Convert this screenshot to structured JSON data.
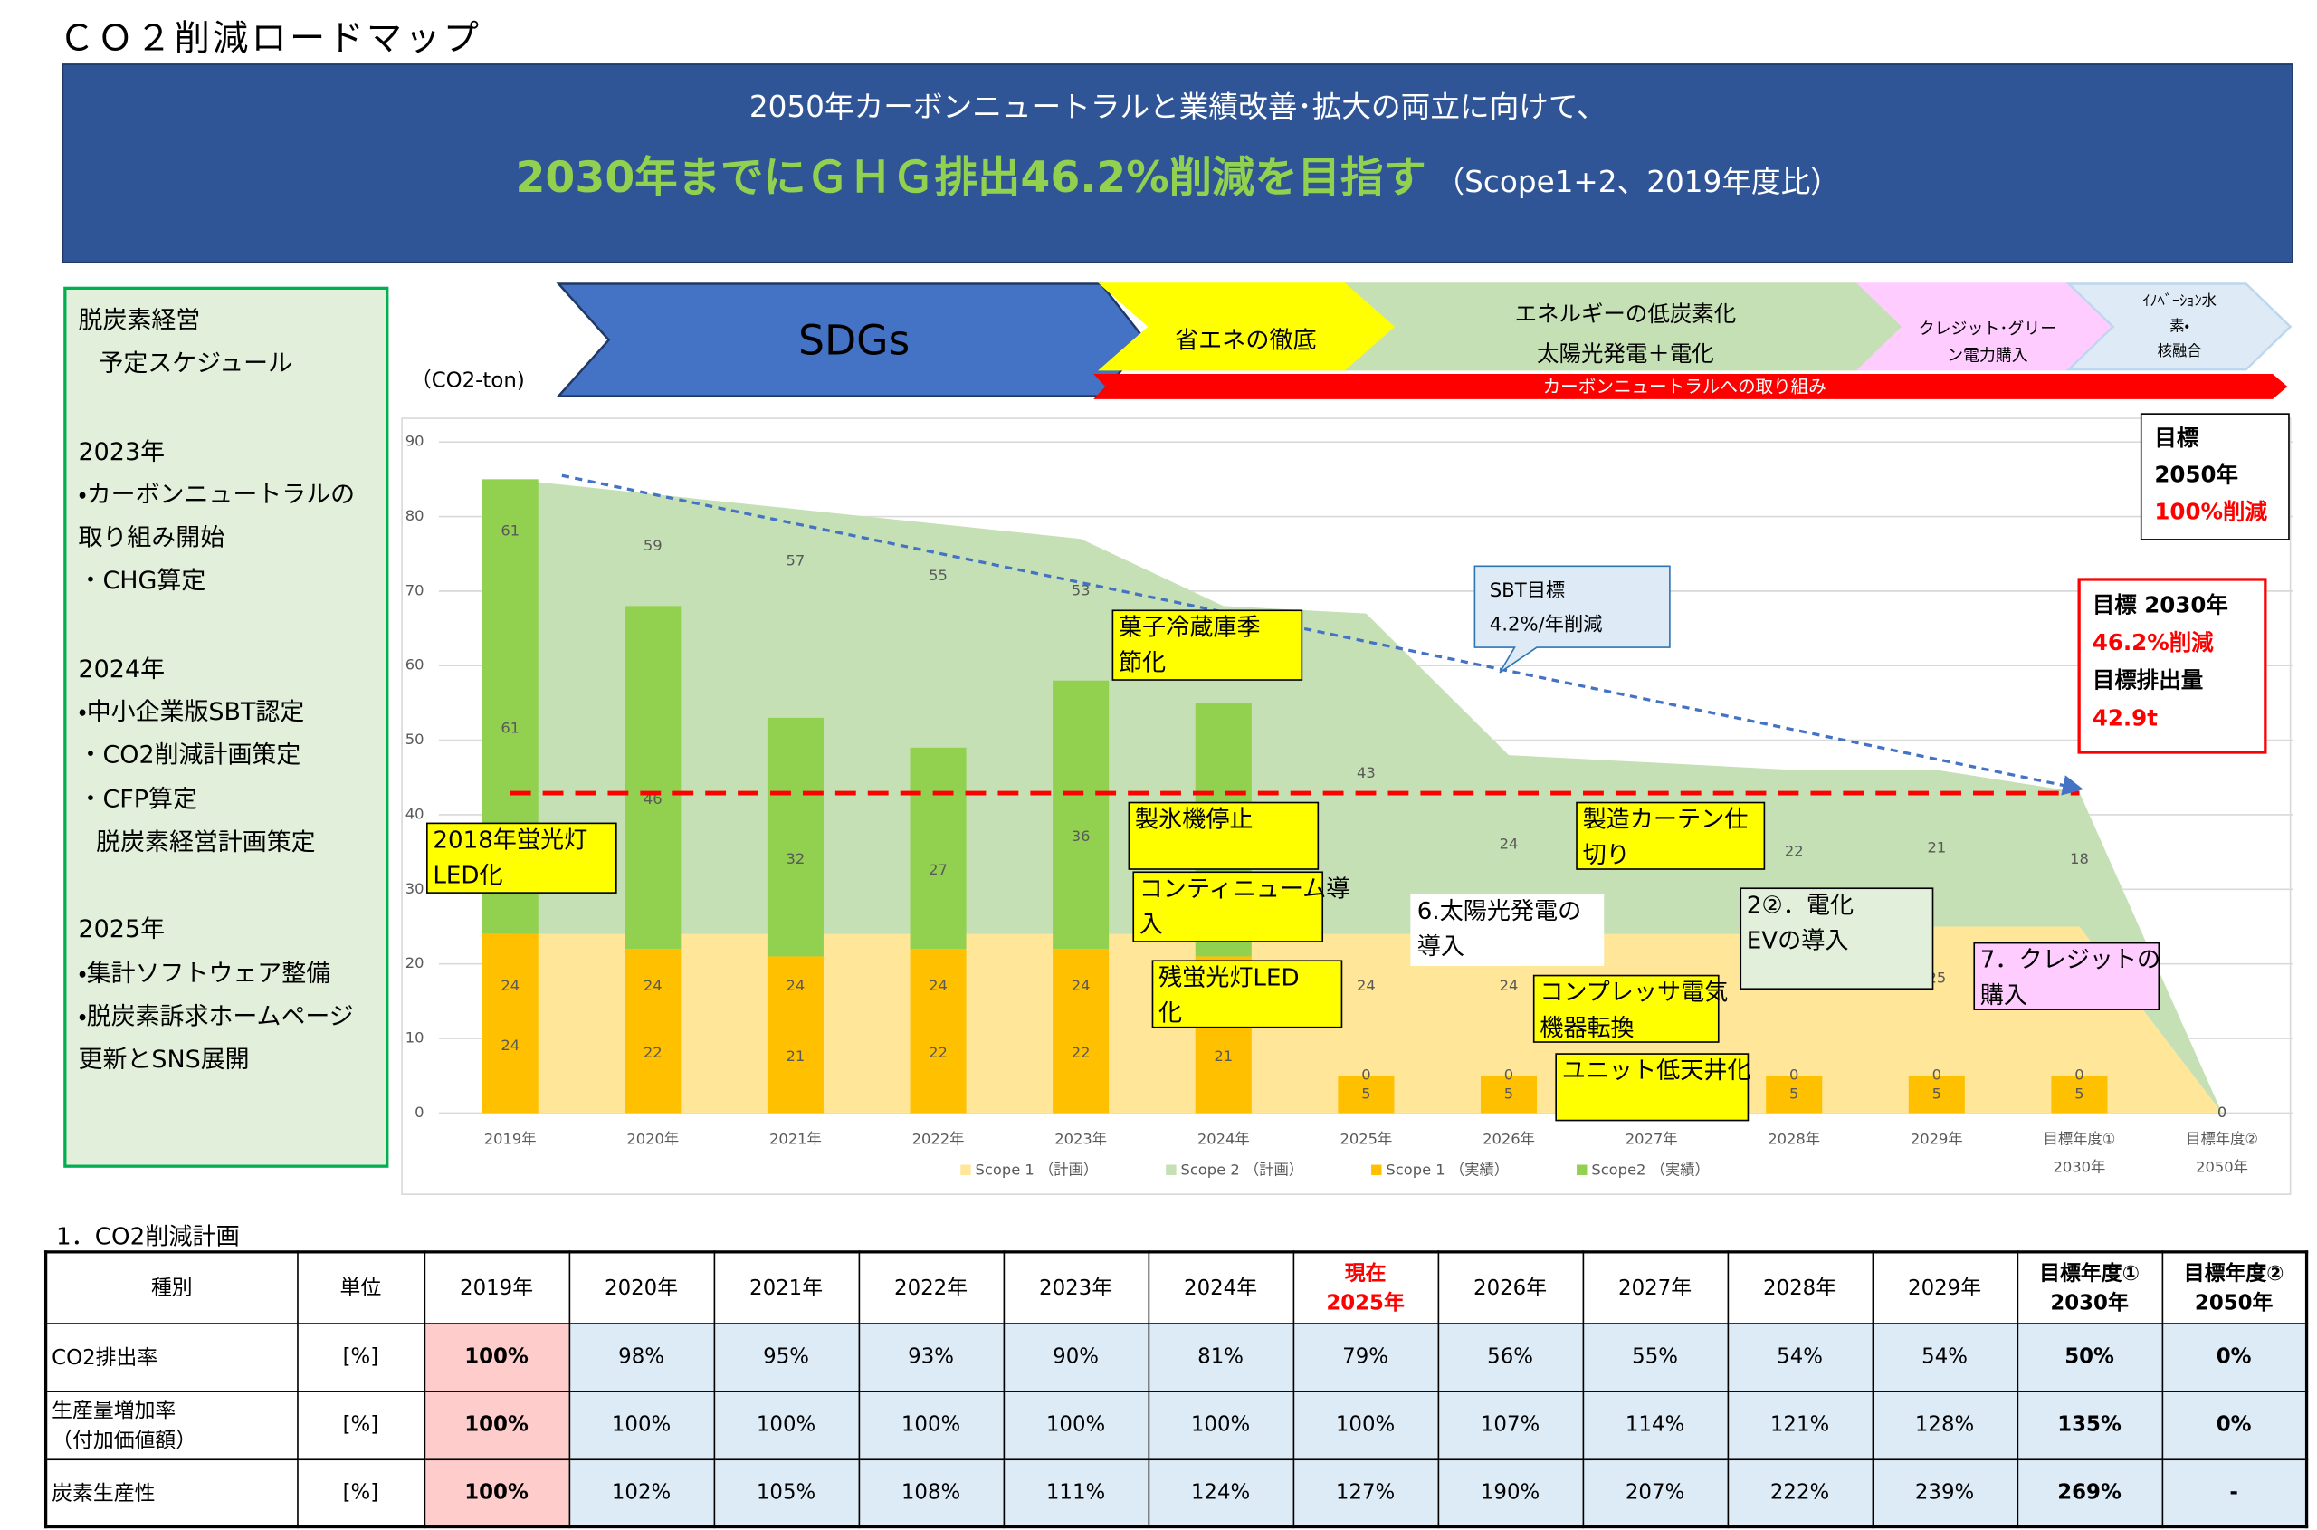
{
  "title": "ＣＯ２削減ロードマップ",
  "banner": {
    "line1": "2050年カーボンニュートラルと業績改善･拡大の両立に向けて、",
    "headline": "2030年までにＧＨＧ排出46.2%削減を目指す",
    "headline_note": "（Scope1+2、2019年度比）"
  },
  "sidebar": {
    "title": [
      "脱炭素経営",
      "予定スケジュール"
    ],
    "sections": [
      {
        "year": "2023年",
        "items": [
          "・カーボンニュートラルの取り組み開始",
          "・CHG算定"
        ]
      },
      {
        "year": "2024年",
        "items": [
          "・中小企業版SBT認定",
          "・CO2削減計画策定",
          "・CFP算定",
          "脱炭素経営計画策定"
        ]
      },
      {
        "year": "2025年",
        "items": [
          "・集計ソフトウェア整備",
          "・脱炭素訴求ホームページ更新とSNS展開"
        ]
      }
    ]
  },
  "roadmap": {
    "phases": [
      {
        "lines": [
          "SDGs"
        ]
      },
      {
        "lines": [
          "省エネの徹底"
        ]
      },
      {
        "lines": [
          "エネルギーの低炭素化",
          "太陽光発電＋電化"
        ]
      },
      {
        "lines": [
          "クレジット･グリー",
          "ン電力購入"
        ]
      },
      {
        "lines": [
          "ｲﾉﾍﾞｰｼｮﾝ水",
          "素・",
          "核融合"
        ]
      }
    ],
    "arrow": "カーボンニュートラルへの取り組み"
  },
  "chart_data": {
    "type": "bar",
    "y_unit": "（CO2-ton)",
    "categories": [
      "2019年",
      "2020年",
      "2021年",
      "2022年",
      "2023年",
      "2024年",
      "2025年",
      "2026年",
      "2027年",
      "2028年",
      "2029年",
      "目標年度①",
      "目標年度②"
    ],
    "category_sublabels": [
      null,
      null,
      null,
      null,
      null,
      null,
      null,
      null,
      null,
      null,
      null,
      "2030年",
      "2050年"
    ],
    "series": [
      {
        "name": "Scope 1 （計画）",
        "kind": "area",
        "color": "#FFE699",
        "values": [
          24,
          24,
          24,
          24,
          24,
          24,
          24,
          24,
          24,
          24,
          25,
          25,
          0
        ]
      },
      {
        "name": "Scope 2 （計画）",
        "kind": "area",
        "color": "#C5E0B4",
        "values": [
          61,
          59,
          57,
          55,
          53,
          44,
          43,
          24,
          23,
          22,
          21,
          18,
          0
        ]
      },
      {
        "name": "Scope 1 （実績）",
        "kind": "bar",
        "color": "#FFC000",
        "values": [
          24,
          22,
          21,
          22,
          22,
          21,
          5,
          5,
          null,
          5,
          5,
          5,
          null
        ]
      },
      {
        "name": "Scope2 （実績）",
        "kind": "bar",
        "color": "#92D050",
        "values": [
          61,
          46,
          32,
          27,
          36,
          34,
          0,
          0,
          null,
          0,
          0,
          0,
          null
        ]
      }
    ],
    "ylim": [
      0,
      90
    ],
    "yticks": [
      0,
      10,
      20,
      30,
      40,
      50,
      60,
      70,
      80,
      90
    ],
    "grid": true,
    "target_line": 42.9,
    "sbt_line": [
      85.5,
      43.5
    ],
    "sbt_callout": [
      "SBT目標",
      "4.2%/年削減"
    ],
    "target_2050": [
      "目標",
      "2050年",
      "100%削減"
    ],
    "target_2030": [
      "目標 2030年",
      "46.2%削減",
      "目標排出量",
      "42.9t"
    ],
    "annotations": [
      {
        "lines": [
          "2018年蛍光灯",
          "LED化"
        ]
      },
      {
        "lines": [
          "菓子冷蔵庫季",
          "節化"
        ]
      },
      {
        "lines": [
          "製氷機停止"
        ]
      },
      {
        "lines": [
          "コンティニューム導",
          "入"
        ]
      },
      {
        "lines": [
          "残蛍光灯LED",
          "化"
        ]
      },
      {
        "lines": [
          "製造カーテン仕",
          "切り"
        ]
      },
      {
        "lines": [
          "コンプレッサ電気",
          "機器転換"
        ]
      },
      {
        "lines": [
          "ユニット低天井化"
        ]
      },
      {
        "lines": [
          "6.太陽光発電の",
          "導入"
        ]
      },
      {
        "lines": [
          "2②．電化",
          "EVの導入"
        ]
      },
      {
        "lines": [
          "7．クレジットの",
          "購入"
        ]
      }
    ]
  },
  "section_title": "1．CO2削減計画",
  "table": {
    "header": [
      [
        "種別"
      ],
      [
        "単位"
      ],
      [
        "2019年"
      ],
      [
        "2020年"
      ],
      [
        "2021年"
      ],
      [
        "2022年"
      ],
      [
        "2023年"
      ],
      [
        "2024年"
      ],
      [
        "現在",
        "2025年"
      ],
      [
        "2026年"
      ],
      [
        "2027年"
      ],
      [
        "2028年"
      ],
      [
        "2029年"
      ],
      [
        "目標年度①",
        "2030年"
      ],
      [
        "目標年度②",
        "2050年"
      ]
    ],
    "rows": [
      {
        "label": [
          "CO2排出率"
        ],
        "unit": "[%]",
        "values": [
          "100%",
          "98%",
          "95%",
          "93%",
          "90%",
          "81%",
          "79%",
          "56%",
          "55%",
          "54%",
          "54%",
          "50%",
          "0%"
        ]
      },
      {
        "label": [
          "生産量増加率",
          "（付加価値額）"
        ],
        "unit": "[%]",
        "values": [
          "100%",
          "100%",
          "100%",
          "100%",
          "100%",
          "100%",
          "100%",
          "107%",
          "114%",
          "121%",
          "128%",
          "135%",
          "0%"
        ]
      },
      {
        "label": [
          "炭素生産性"
        ],
        "unit": "[%]",
        "values": [
          "100%",
          "102%",
          "105%",
          "108%",
          "111%",
          "124%",
          "127%",
          "190%",
          "207%",
          "222%",
          "239%",
          "269%",
          "-"
        ]
      }
    ]
  }
}
